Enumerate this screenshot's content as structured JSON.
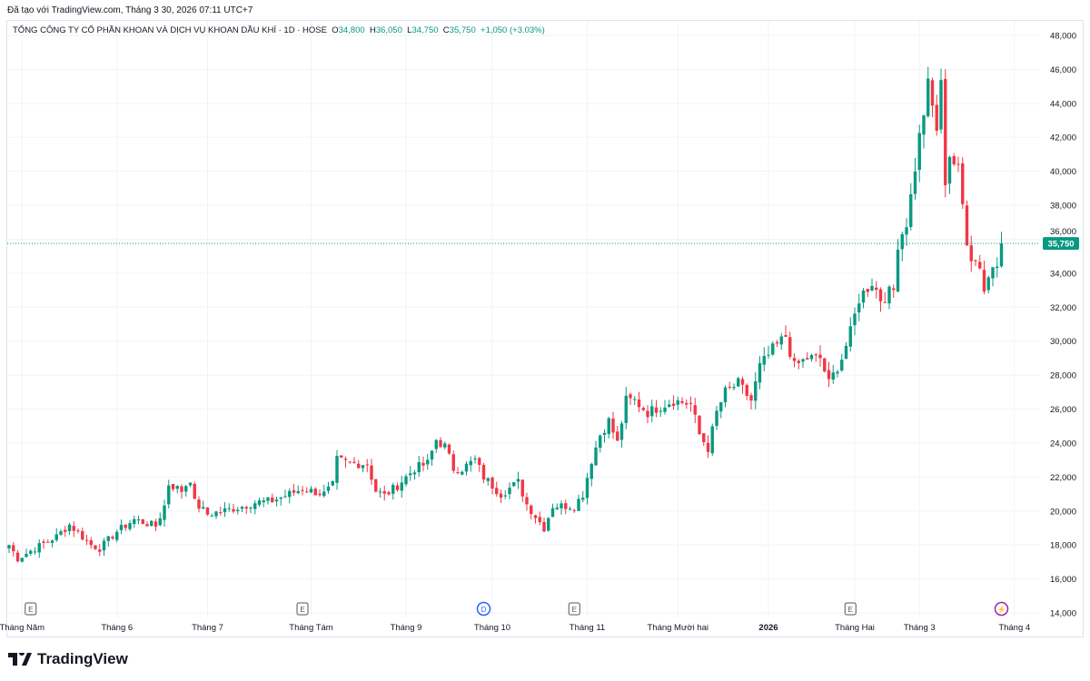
{
  "created_by": "Đã tạo với TradingView.com, Tháng 3 30, 2026 07:11 UTC+7",
  "legend": {
    "symbol": "TỔNG CÔNG TY CỔ PHẦN KHOAN VÀ DỊCH VỤ KHOAN DẦU KHÍ · 1D · HOSE",
    "o_label": "O",
    "o": "34,800",
    "h_label": "H",
    "h": "36,050",
    "l_label": "L",
    "l": "34,750",
    "c_label": "C",
    "c": "35,750",
    "change": "+1,050 (+3.03%)"
  },
  "logo": "TradingView",
  "colors": {
    "up": "#089981",
    "down": "#F23645",
    "grid": "#f0f3fa"
  },
  "chart_data": {
    "type": "candlestick",
    "ylim": [
      14000,
      48000
    ],
    "yticks": [
      "48,000",
      "46,000",
      "44,000",
      "42,000",
      "40,000",
      "38,000",
      "36,000",
      "34,000",
      "32,000",
      "30,000",
      "28,000",
      "26,000",
      "24,000",
      "22,000",
      "20,000",
      "18,000",
      "16,000",
      "14,000"
    ],
    "xticks": [
      {
        "label": "Tháng Năm",
        "i": 3
      },
      {
        "label": "Tháng 6",
        "i": 25
      },
      {
        "label": "Tháng 7",
        "i": 46
      },
      {
        "label": "Tháng Tám",
        "i": 70
      },
      {
        "label": "Tháng 9",
        "i": 92
      },
      {
        "label": "Tháng 10",
        "i": 112
      },
      {
        "label": "Tháng 11",
        "i": 134
      },
      {
        "label": "Tháng Mười hai",
        "i": 155
      },
      {
        "label": "2026",
        "i": 176
      },
      {
        "label": "Tháng Hai",
        "i": 196
      },
      {
        "label": "Tháng 3",
        "i": 211
      },
      {
        "label": "Tháng 4",
        "i": 233
      }
    ],
    "events": [
      {
        "type": "E",
        "i": 5
      },
      {
        "type": "E",
        "i": 68
      },
      {
        "type": "D",
        "i": 110
      },
      {
        "type": "E",
        "i": 131
      },
      {
        "type": "E",
        "i": 195
      },
      {
        "type": "⚡",
        "i": 230
      }
    ],
    "last_price": "35,750",
    "close_keypoints": [
      [
        0,
        18.0
      ],
      [
        2,
        17.2
      ],
      [
        6,
        17.8
      ],
      [
        11,
        18.5
      ],
      [
        14,
        19.2
      ],
      [
        19,
        18.0
      ],
      [
        21,
        17.8
      ],
      [
        25,
        18.8
      ],
      [
        29,
        19.5
      ],
      [
        34,
        19.1
      ],
      [
        36,
        20.3
      ],
      [
        37,
        21.6
      ],
      [
        40,
        21.2
      ],
      [
        42,
        21.9
      ],
      [
        43,
        20.5
      ],
      [
        46,
        19.8
      ],
      [
        53,
        20.2
      ],
      [
        57,
        20.5
      ],
      [
        61,
        20.6
      ],
      [
        65,
        21.0
      ],
      [
        68,
        21.3
      ],
      [
        73,
        21.0
      ],
      [
        75,
        21.5
      ],
      [
        76,
        23.0
      ],
      [
        79,
        22.8
      ],
      [
        83,
        22.8
      ],
      [
        85,
        21.2
      ],
      [
        87,
        20.9
      ],
      [
        90,
        21.5
      ],
      [
        94,
        22.5
      ],
      [
        97,
        22.8
      ],
      [
        99,
        24.2
      ],
      [
        101,
        23.8
      ],
      [
        103,
        22.5
      ],
      [
        105,
        22.5
      ],
      [
        108,
        23.0
      ],
      [
        110,
        22.0
      ],
      [
        114,
        21.0
      ],
      [
        118,
        21.7
      ],
      [
        120,
        20.4
      ],
      [
        124,
        19.0
      ],
      [
        126,
        20.3
      ],
      [
        131,
        20.3
      ],
      [
        133,
        21.0
      ],
      [
        135,
        23.0
      ],
      [
        137,
        24.5
      ],
      [
        139,
        25.3
      ],
      [
        141,
        24.0
      ],
      [
        143,
        26.5
      ],
      [
        145,
        26.5
      ],
      [
        148,
        25.8
      ],
      [
        152,
        26.3
      ],
      [
        154,
        26.5
      ],
      [
        158,
        26.3
      ],
      [
        160,
        24.5
      ],
      [
        162,
        23.7
      ],
      [
        164,
        25.8
      ],
      [
        166,
        27.0
      ],
      [
        169,
        27.5
      ],
      [
        172,
        26.5
      ],
      [
        174,
        28.5
      ],
      [
        177,
        29.5
      ],
      [
        180,
        30.3
      ],
      [
        182,
        28.5
      ],
      [
        185,
        29.0
      ],
      [
        188,
        29.0
      ],
      [
        190,
        27.5
      ],
      [
        193,
        29.0
      ],
      [
        195,
        30.5
      ],
      [
        197,
        32.5
      ],
      [
        200,
        33.5
      ],
      [
        202,
        32.5
      ],
      [
        205,
        33.0
      ],
      [
        206,
        35.8
      ],
      [
        208,
        37.0
      ],
      [
        209,
        38.5
      ],
      [
        211,
        42.0
      ],
      [
        213,
        45.0
      ],
      [
        215,
        42.5
      ],
      [
        216,
        45.0
      ],
      [
        217,
        39.5
      ],
      [
        218,
        41.0
      ],
      [
        220,
        40.0
      ],
      [
        222,
        36.0
      ],
      [
        223,
        35.0
      ],
      [
        225,
        34.5
      ],
      [
        226,
        33.0
      ],
      [
        228,
        34.5
      ],
      [
        229,
        34.8
      ],
      [
        230,
        35.75
      ]
    ]
  }
}
